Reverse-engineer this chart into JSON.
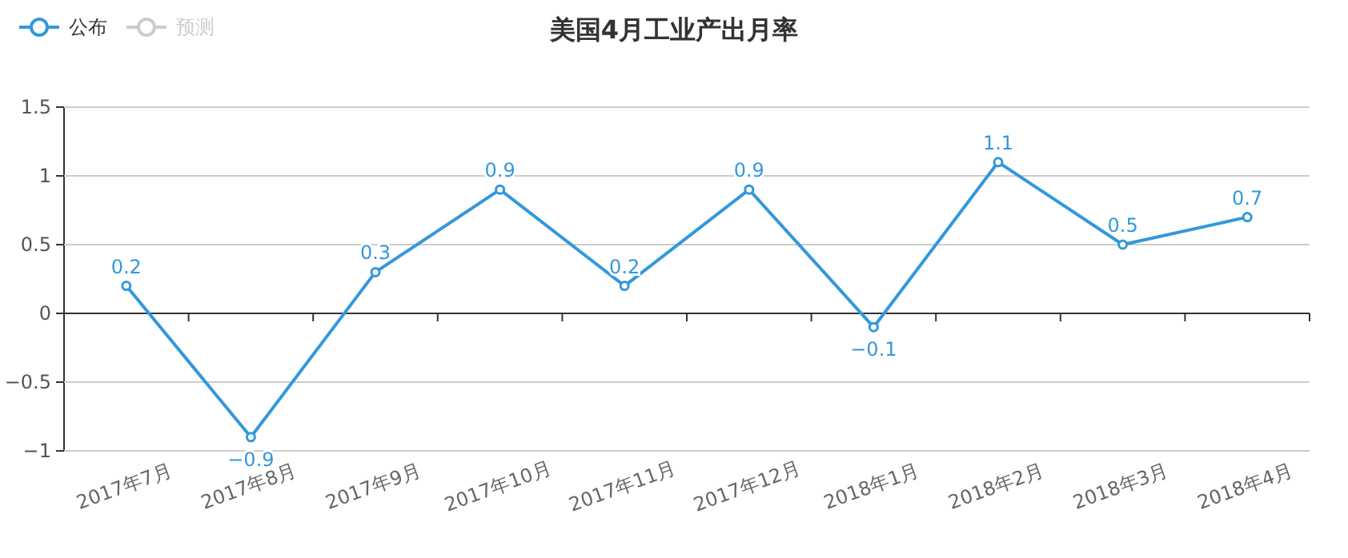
{
  "chart_data": {
    "type": "line",
    "title": "美国4月工业产出月率",
    "categories": [
      "2017年7月",
      "2017年8月",
      "2017年9月",
      "2017年10月",
      "2017年11月",
      "2017年12月",
      "2018年1月",
      "2018年2月",
      "2018年3月",
      "2018年4月"
    ],
    "series": [
      {
        "name": "公布",
        "color": "#3398db",
        "values": [
          0.2,
          -0.9,
          0.3,
          0.9,
          0.2,
          0.9,
          -0.1,
          1.1,
          0.5,
          0.7
        ]
      },
      {
        "name": "预测",
        "color": "#cccccc",
        "values": [
          null,
          null,
          null,
          null,
          null,
          null,
          null,
          null,
          null,
          null
        ]
      }
    ],
    "ylim": [
      -1,
      1.5
    ],
    "yticks": [
      -1,
      -0.5,
      0,
      0.5,
      1,
      1.5
    ],
    "grid": "y",
    "legend": "top left",
    "marker": "circle",
    "line_style": "solid",
    "data_labels": true
  }
}
